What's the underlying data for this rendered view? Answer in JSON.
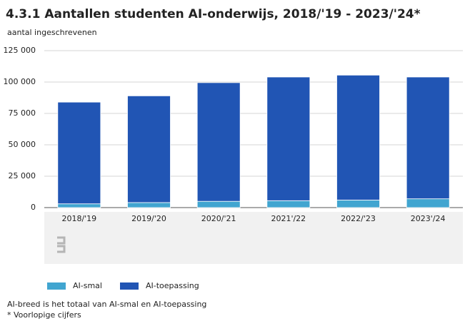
{
  "chart_data": {
    "type": "stacked-bar",
    "title": "4.3.1 Aantallen studenten AI-onderwijs, 2018/'19 - 2023/'24*",
    "y_label": "aantal ingeschrevenen",
    "categories": [
      "2018/'19",
      "2019/'20",
      "2020/'21",
      "2021'/22",
      "2022/'23",
      "2023'/24"
    ],
    "series": [
      {
        "name": "AI-smal",
        "color": "#41a5d0",
        "values": [
          3000,
          4000,
          5000,
          5500,
          6000,
          7000
        ]
      },
      {
        "name": "AI-toepassing",
        "color": "#2155b4",
        "values": [
          81000,
          85000,
          94500,
          98500,
          99500,
          97000
        ]
      }
    ],
    "ylim": [
      0,
      125000
    ],
    "yticks": [
      0,
      {
        "value": 25000,
        "label": "25 000"
      },
      {
        "value": 50000,
        "label": "50 000"
      },
      {
        "value": 75000,
        "label": "75 000"
      },
      {
        "value": 100000,
        "label": "100 000"
      },
      {
        "value": 125000,
        "label": "125 000"
      }
    ],
    "grid": true,
    "notes": [
      "AI-breed is het totaal van AI-smal en AI-toepassing",
      "* Voorlopige cijfers"
    ]
  }
}
